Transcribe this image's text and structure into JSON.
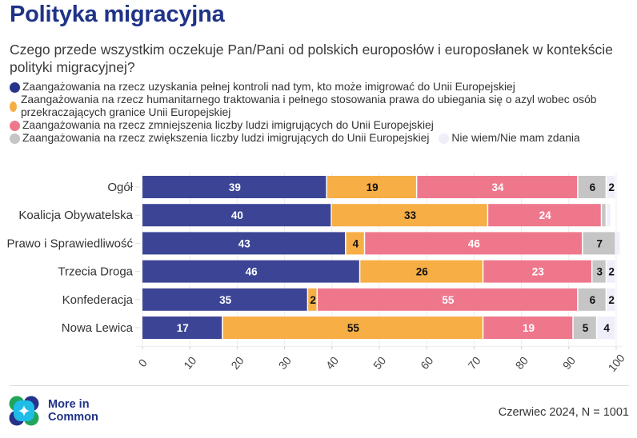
{
  "header": {
    "title": "Polityka migracyjna",
    "subtitle": "Czego przede wszystkim oczekuje Pan/Pani od polskich europosłów i europosłanek w kontekście polityki migracyjnej?"
  },
  "legend": [
    {
      "label": "Zaangażowania na rzecz uzyskania pełnej kontroli nad tym, kto może imigrować do Unii Europejskiej",
      "color": "#3c4595"
    },
    {
      "label": "Zaangażowania na rzecz humanitarnego traktowania i pełnego stosowania prawa do ubiegania się o azyl wobec osób przekraczających granice Unii Europejskiej",
      "color": "#f6ae45"
    },
    {
      "label": "Zaangażowania na rzecz zmniejszenia liczby ludzi imigrujących do Unii Europejskiej",
      "color": "#ef778c"
    },
    {
      "label": "Zaangażowania na rzecz zwiększenia liczby ludzi imigrujących do Unii Europejskiej",
      "color": "#c5c5c5"
    },
    {
      "label": "Nie wiem/Nie mam zdania",
      "color": "#eeeff8"
    }
  ],
  "chart_data": {
    "type": "bar",
    "orientation": "horizontal",
    "stacked": true,
    "title": "Polityka migracyjna",
    "xlabel": "",
    "ylabel": "",
    "xlim": [
      0,
      100
    ],
    "xticks": [
      "0",
      "10",
      "20",
      "30",
      "40",
      "50",
      "60",
      "70",
      "80",
      "90",
      "100"
    ],
    "grid": true,
    "legend_position": "top",
    "categories": [
      "Ogół",
      "Koalicja Obywatelska",
      "Prawo i Sprawiedliwość",
      "Trzecia Droga",
      "Konfederacja",
      "Nowa Lewica"
    ],
    "series": [
      {
        "name": "Zaangażowania na rzecz uzyskania pełnej kontroli nad tym, kto może imigrować do Unii Europejskiej",
        "color": "#3c4595",
        "label_color": "#ffffff",
        "values": [
          39,
          40,
          43,
          46,
          35,
          17
        ],
        "labels": [
          "39",
          "40",
          "43",
          "46",
          "35",
          "17"
        ]
      },
      {
        "name": "Zaangażowania na rzecz humanitarnego traktowania i pełnego stosowania prawa do ubiegania się o azyl wobec osób przekraczających granice Unii Europejskiej",
        "color": "#f6ae45",
        "label_color": "#111111",
        "values": [
          19,
          33,
          4,
          26,
          2,
          55
        ],
        "labels": [
          "19",
          "33",
          "4",
          "26",
          "2",
          "55"
        ]
      },
      {
        "name": "Zaangażowania na rzecz zmniejszenia liczby ludzi imigrujących do Unii Europejskiej",
        "color": "#ef778c",
        "label_color": "#ffffff",
        "values": [
          34,
          24,
          46,
          23,
          55,
          19
        ],
        "labels": [
          "34",
          "24",
          "46",
          "23",
          "55",
          "19"
        ]
      },
      {
        "name": "Zaangażowania na rzecz zwiększenia liczby ludzi imigrujących do Unii Europejskiej",
        "color": "#c5c5c5",
        "label_color": "#111111",
        "values": [
          6,
          1,
          7,
          3,
          6,
          5
        ],
        "labels": [
          "6",
          "",
          "7",
          "3",
          "6",
          "5"
        ]
      },
      {
        "name": "Nie wiem/Nie mam zdania",
        "color": "#eeeff8",
        "label_color": "#111111",
        "values": [
          2,
          1,
          1,
          2,
          2,
          4
        ],
        "labels": [
          "2",
          "",
          "",
          "2",
          "2",
          "4"
        ]
      }
    ]
  },
  "footer": {
    "logo_text_line1": "More in",
    "logo_text_line2": "Common",
    "source": "Czerwiec 2024, N = 1001"
  }
}
